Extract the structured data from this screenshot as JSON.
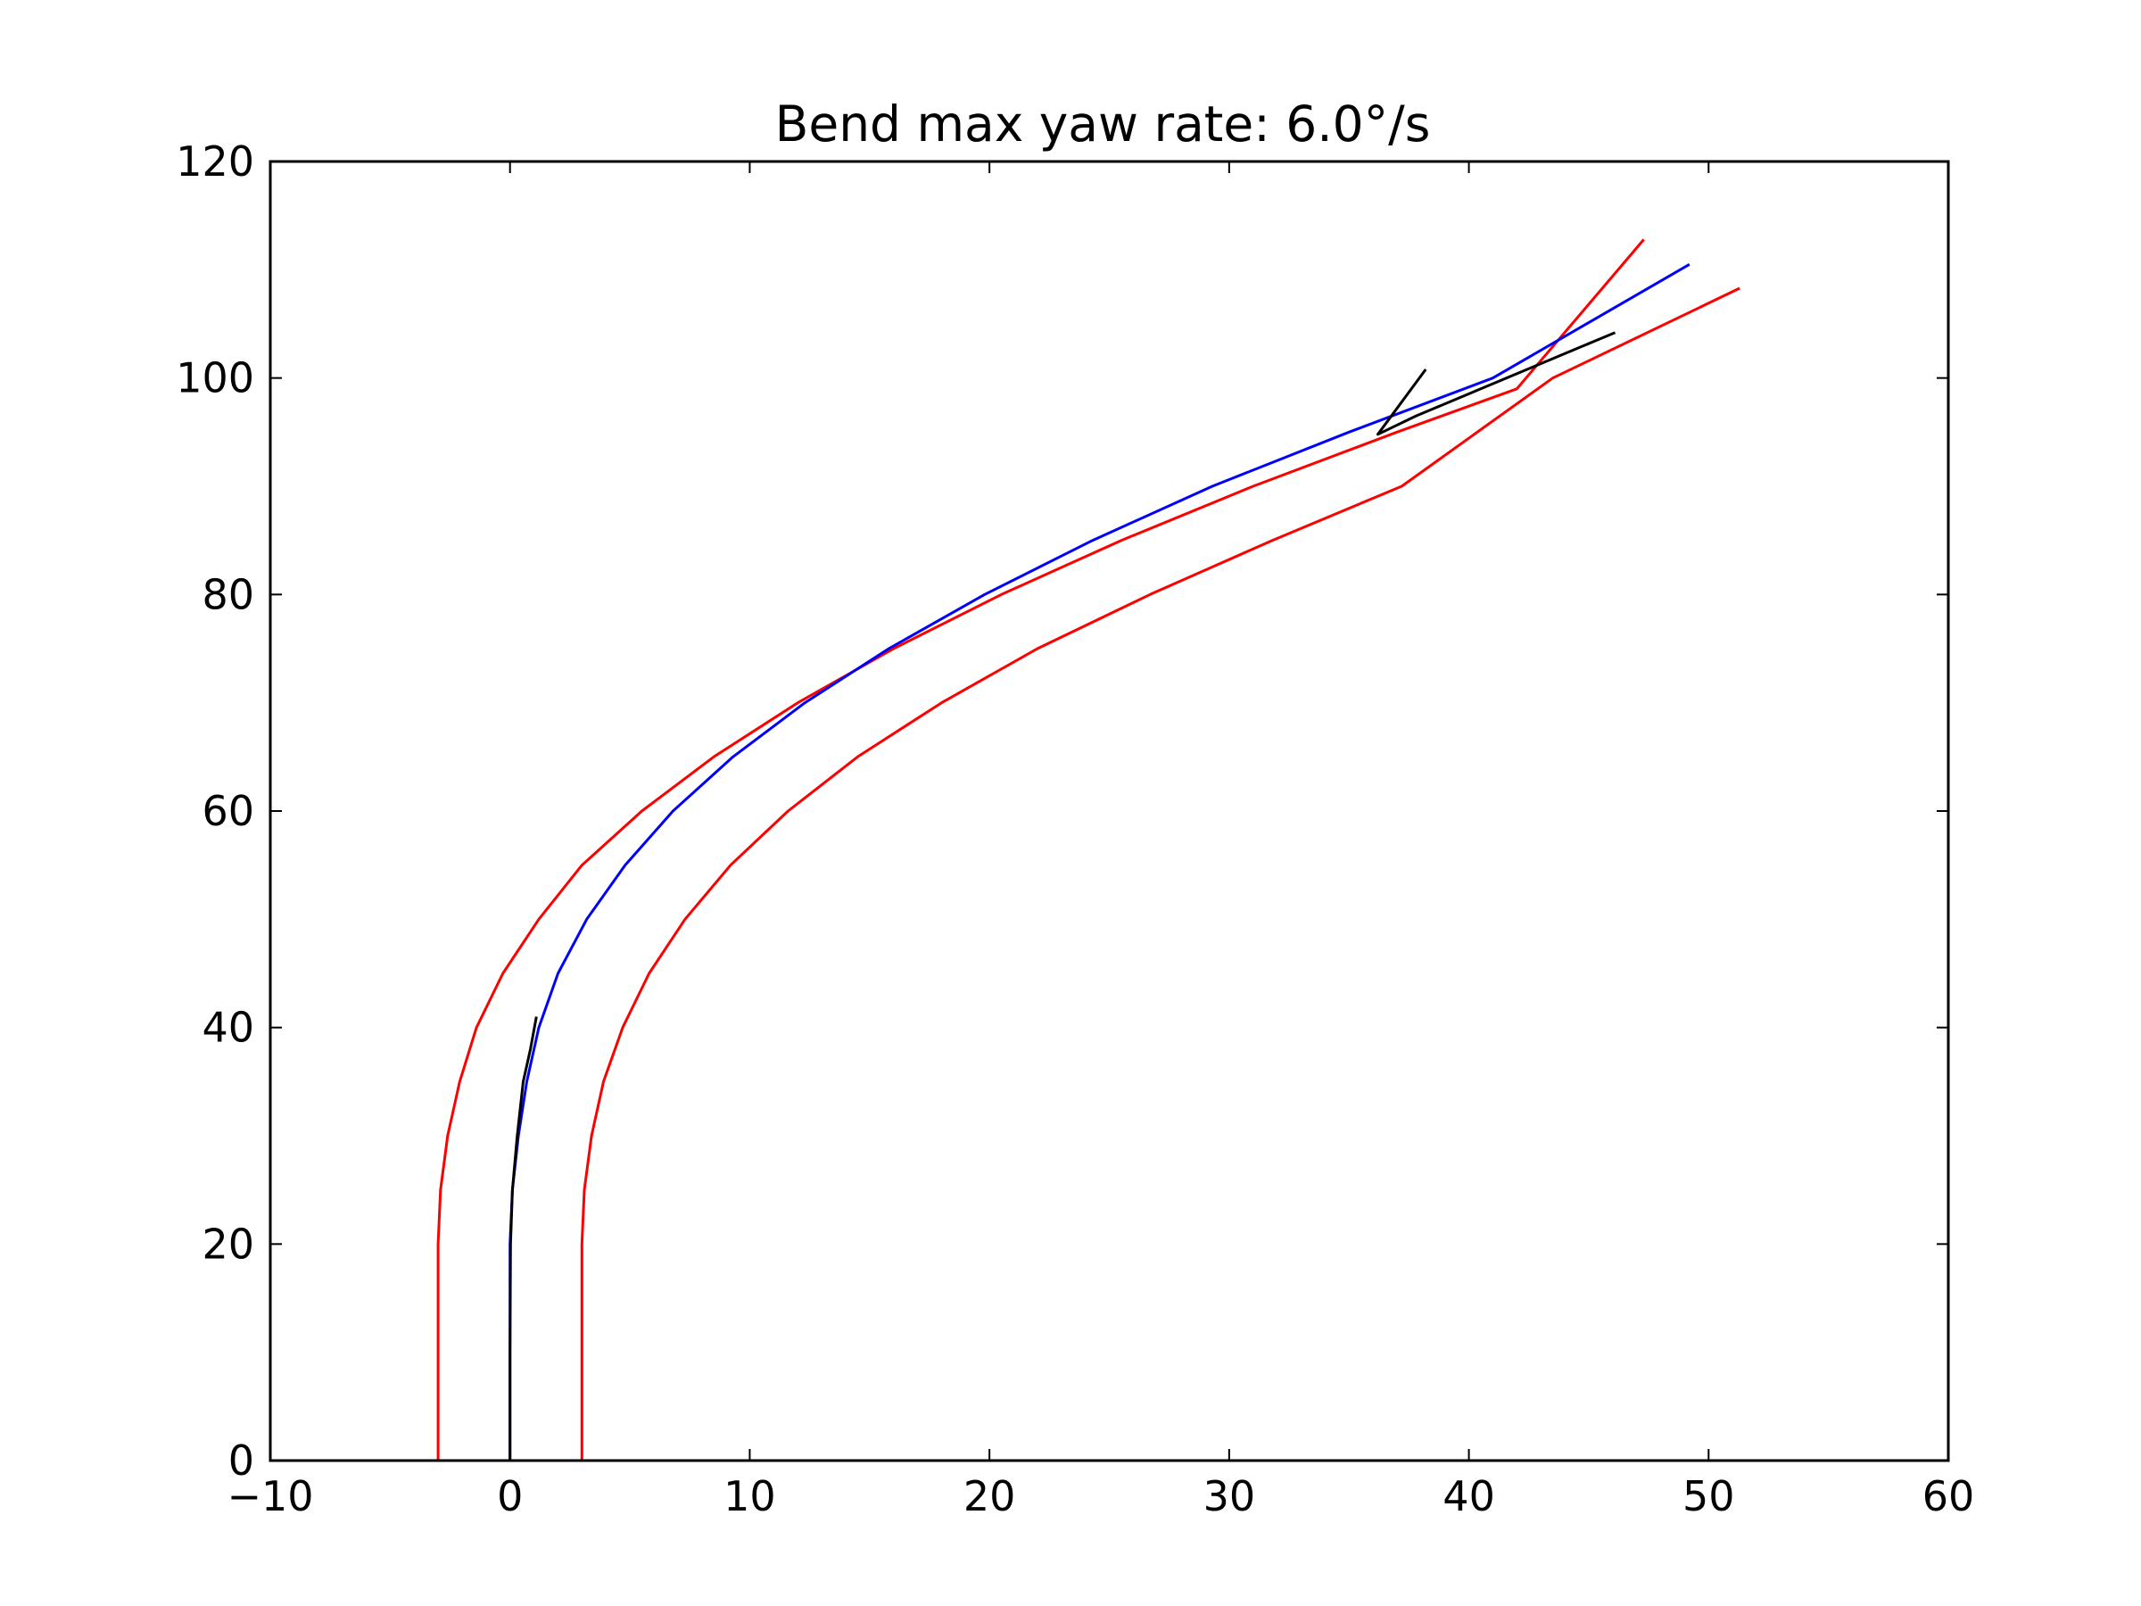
{
  "chart_data": {
    "type": "line",
    "title": "Bend max yaw rate: 6.0°/s",
    "xlabel": "",
    "ylabel": "",
    "xlim": [
      -10,
      60
    ],
    "ylim": [
      0,
      120
    ],
    "xticks": [
      -10,
      0,
      10,
      20,
      30,
      40,
      50,
      60
    ],
    "yticks": [
      0,
      20,
      40,
      60,
      80,
      100,
      120
    ],
    "xtick_labels": [
      "−10",
      "0",
      "10",
      "20",
      "30",
      "40",
      "50",
      "60"
    ],
    "ytick_labels": [
      "0",
      "20",
      "40",
      "60",
      "80",
      "100",
      "120"
    ],
    "grid": false,
    "legend": "none",
    "series": [
      {
        "color": "#ff0000",
        "points": [
          [
            -3,
            0
          ],
          [
            -3,
            20
          ],
          [
            -2.9,
            25
          ],
          [
            -2.6,
            30
          ],
          [
            -2.1,
            35
          ],
          [
            -1.4,
            40
          ],
          [
            -0.3,
            45
          ],
          [
            1.2,
            50
          ],
          [
            3.0,
            55
          ],
          [
            5.5,
            60
          ],
          [
            8.5,
            65
          ],
          [
            12,
            70
          ],
          [
            16,
            75
          ],
          [
            20.5,
            80
          ],
          [
            25.5,
            85
          ],
          [
            31,
            90
          ],
          [
            37,
            95
          ],
          [
            42,
            99
          ],
          [
            47.3,
            112.8
          ]
        ]
      },
      {
        "color": "#0000ff",
        "points": [
          [
            0,
            0
          ],
          [
            0,
            20
          ],
          [
            0.1,
            25
          ],
          [
            0.35,
            30
          ],
          [
            0.7,
            35
          ],
          [
            1.2,
            40
          ],
          [
            2.0,
            45
          ],
          [
            3.2,
            50
          ],
          [
            4.8,
            55
          ],
          [
            6.8,
            60
          ],
          [
            9.3,
            65
          ],
          [
            12.3,
            70
          ],
          [
            15.8,
            75
          ],
          [
            19.8,
            80
          ],
          [
            24.3,
            85
          ],
          [
            29.3,
            90
          ],
          [
            35,
            95
          ],
          [
            41,
            100
          ],
          [
            49.2,
            110.5
          ]
        ]
      },
      {
        "color": "#ff0000",
        "points": [
          [
            3,
            0
          ],
          [
            3,
            20
          ],
          [
            3.1,
            25
          ],
          [
            3.4,
            30
          ],
          [
            3.9,
            35
          ],
          [
            4.7,
            40
          ],
          [
            5.8,
            45
          ],
          [
            7.3,
            50
          ],
          [
            9.2,
            55
          ],
          [
            11.6,
            60
          ],
          [
            14.5,
            65
          ],
          [
            18,
            70
          ],
          [
            22,
            75
          ],
          [
            26.7,
            80
          ],
          [
            31.8,
            85
          ],
          [
            37.2,
            90
          ],
          [
            43.5,
            100
          ],
          [
            51.3,
            108.3
          ]
        ]
      },
      {
        "color": "#000000",
        "points": [
          [
            0,
            0
          ],
          [
            0,
            10
          ],
          [
            0.02,
            20
          ],
          [
            0.1,
            25
          ],
          [
            0.3,
            30
          ],
          [
            0.55,
            35
          ],
          [
            0.85,
            38
          ],
          [
            1.1,
            41
          ]
        ]
      },
      {
        "color": "#000000",
        "points": [
          [
            38.2,
            100.8
          ],
          [
            36.2,
            94.8
          ],
          [
            37.8,
            96.5
          ],
          [
            46.1,
            104.2
          ]
        ]
      }
    ]
  }
}
